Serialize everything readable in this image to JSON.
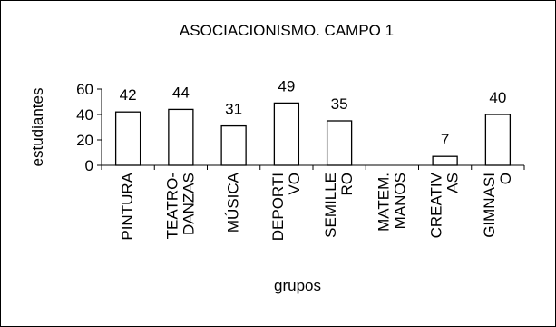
{
  "chart_data": {
    "type": "bar",
    "title": "ASOCIACIONISMO. CAMPO 1",
    "xlabel": "grupos",
    "ylabel": "estudiantes",
    "ylim": [
      0,
      60
    ],
    "yticks": [
      0,
      20,
      40,
      60
    ],
    "grid": false,
    "legend": "none",
    "categories": [
      [
        "PINTURA"
      ],
      [
        "TEATRO-",
        "DANZAS"
      ],
      [
        "MÚSICA"
      ],
      [
        "DEPORTI",
        "VO"
      ],
      [
        "SEMILLE",
        "RO"
      ],
      [
        "MATEM.",
        "MANOS"
      ],
      [
        "CREATIV",
        "AS"
      ],
      [
        "GIMNASI",
        "O"
      ]
    ],
    "values": [
      42,
      44,
      31,
      49,
      35,
      null,
      7,
      40
    ],
    "colors": {
      "bar_fill": "#ffffff",
      "bar_stroke": "#000000",
      "text": "#000000"
    }
  }
}
